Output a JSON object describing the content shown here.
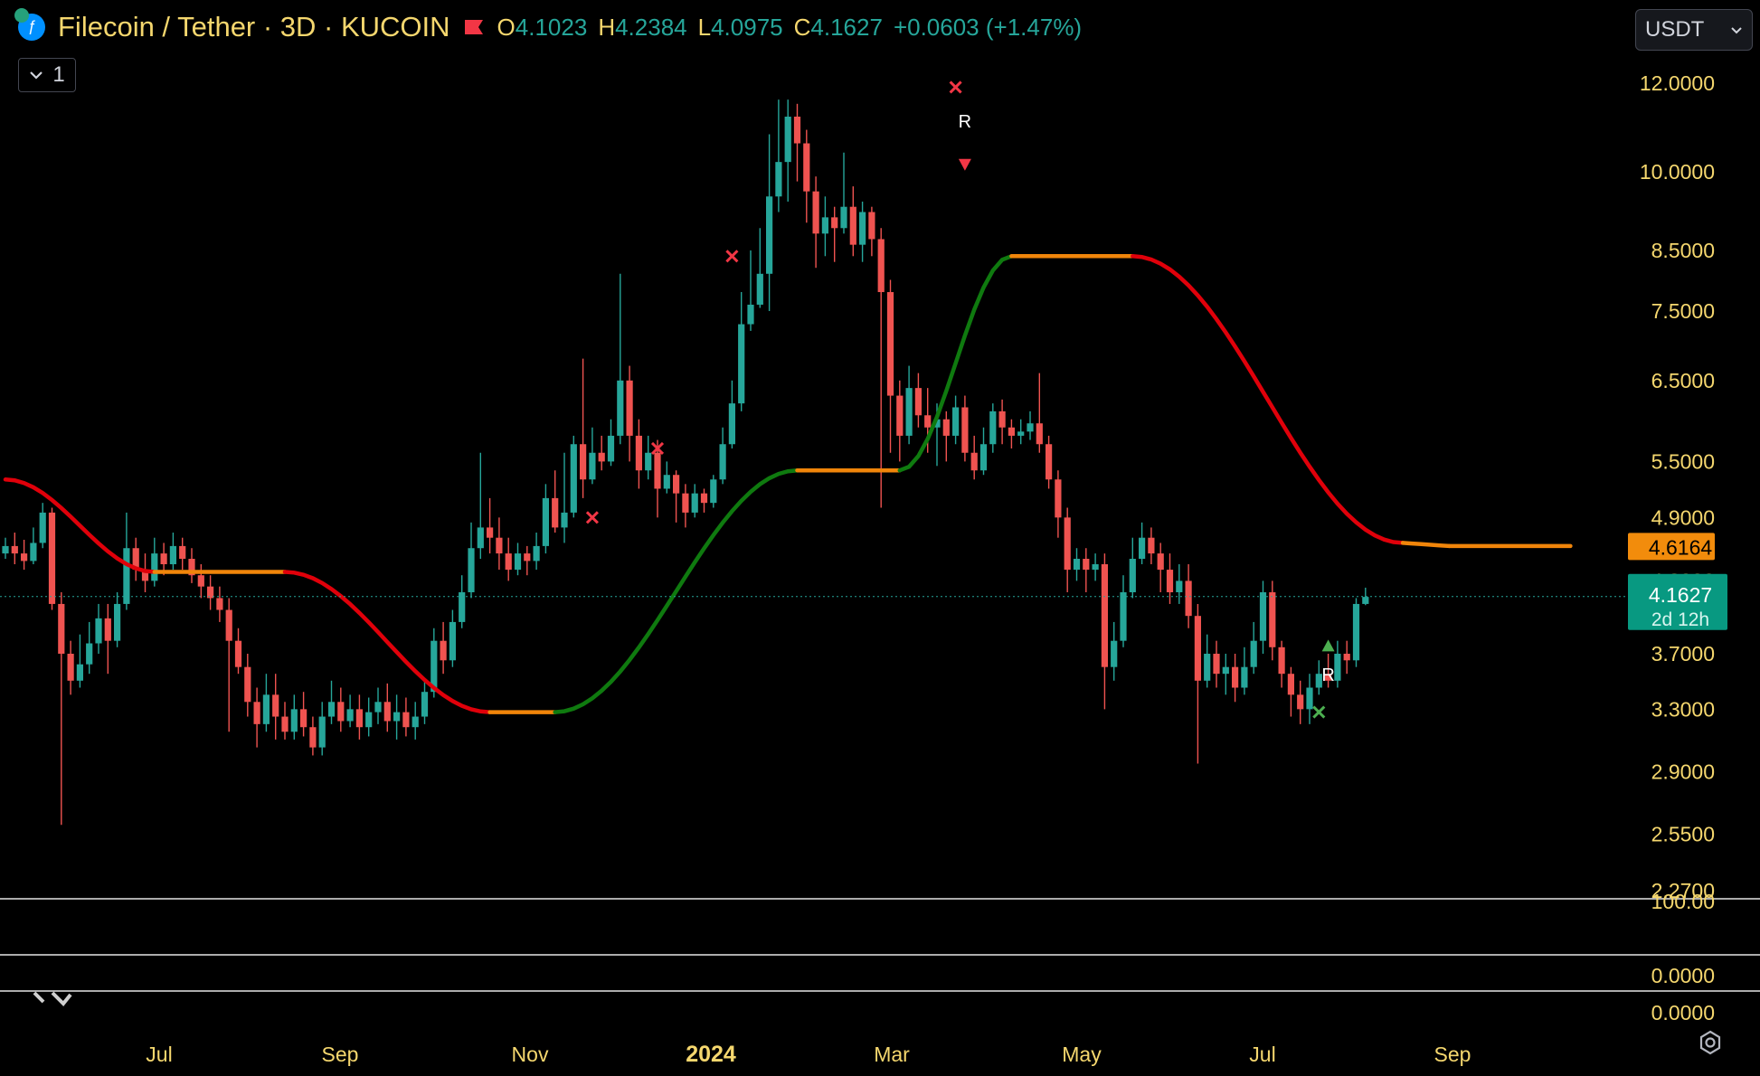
{
  "header": {
    "symbol": "Filecoin / Tether · 3D · KUCOIN",
    "o_label": "O",
    "o_value": "4.1023",
    "h_label": "H",
    "h_value": "4.2384",
    "l_label": "L",
    "l_value": "4.0975",
    "c_label": "C",
    "c_value": "4.1627",
    "change": "+0.0603 (+1.47%)",
    "collapse_count": "1",
    "currency": "USDT"
  },
  "colors": {
    "up": "#26a69a",
    "down": "#ef5350",
    "trend_down": "#e0000a",
    "trend_up": "#0f7a0f",
    "trend_neutral": "#f0850a",
    "axis_text": "#f5d76e",
    "last_price_bg": "#089981",
    "level_bg": "#f28c0c"
  },
  "chart_data": {
    "type": "candlestick",
    "title": "Filecoin / Tether · 3D · KUCOIN",
    "scale": "log",
    "ylim": [
      2.27,
      12.0
    ],
    "y_ticks": [
      "12.0000",
      "10.0000",
      "8.5000",
      "7.5000",
      "6.5000",
      "5.5000",
      "4.9000",
      "4.3000",
      "3.7000",
      "3.3000",
      "2.9000",
      "2.5500",
      "2.2700"
    ],
    "x_ticks": [
      "Jul",
      "Sep",
      "Nov",
      "2024",
      "Mar",
      "May",
      "Jul",
      "Sep"
    ],
    "last_price": {
      "value": "4.1627",
      "countdown": "2d 12h"
    },
    "level_label": "4.6164",
    "sub_panes": [
      {
        "ticks": [
          "100.00"
        ]
      },
      {
        "ticks": [
          "0.0000"
        ]
      },
      {
        "ticks": [
          "0.0000"
        ]
      }
    ],
    "candles": [
      [
        4.55,
        4.62,
        4.7,
        4.5
      ],
      [
        4.62,
        4.55,
        4.75,
        4.45
      ],
      [
        4.55,
        4.48,
        4.68,
        4.4
      ],
      [
        4.48,
        4.65,
        4.8,
        4.45
      ],
      [
        4.65,
        4.95,
        5.05,
        4.6
      ],
      [
        4.95,
        4.1,
        5.0,
        4.05
      ],
      [
        4.1,
        3.7,
        4.2,
        2.6
      ],
      [
        3.7,
        3.5,
        3.8,
        3.4
      ],
      [
        3.5,
        3.62,
        3.85,
        3.45
      ],
      [
        3.62,
        3.78,
        3.95,
        3.55
      ],
      [
        3.78,
        3.98,
        4.1,
        3.7
      ],
      [
        3.98,
        3.8,
        4.1,
        3.55
      ],
      [
        3.8,
        4.1,
        4.2,
        3.75
      ],
      [
        4.1,
        4.6,
        4.95,
        4.05
      ],
      [
        4.6,
        4.4,
        4.7,
        4.3
      ],
      [
        4.4,
        4.3,
        4.55,
        4.2
      ],
      [
        4.3,
        4.55,
        4.7,
        4.25
      ],
      [
        4.55,
        4.45,
        4.65,
        4.35
      ],
      [
        4.45,
        4.62,
        4.75,
        4.4
      ],
      [
        4.62,
        4.5,
        4.7,
        4.4
      ],
      [
        4.5,
        4.35,
        4.6,
        4.28
      ],
      [
        4.35,
        4.25,
        4.45,
        4.15
      ],
      [
        4.25,
        4.15,
        4.35,
        4.05
      ],
      [
        4.15,
        4.05,
        4.25,
        3.95
      ],
      [
        4.05,
        3.8,
        4.15,
        3.15
      ],
      [
        3.8,
        3.6,
        3.9,
        3.55
      ],
      [
        3.6,
        3.35,
        3.7,
        3.25
      ],
      [
        3.35,
        3.2,
        3.45,
        3.05
      ],
      [
        3.2,
        3.4,
        3.55,
        3.15
      ],
      [
        3.4,
        3.25,
        3.55,
        3.1
      ],
      [
        3.25,
        3.15,
        3.35,
        3.1
      ],
      [
        3.15,
        3.3,
        3.4,
        3.1
      ],
      [
        3.3,
        3.18,
        3.42,
        3.12
      ],
      [
        3.18,
        3.05,
        3.25,
        3.0
      ],
      [
        3.05,
        3.25,
        3.35,
        3.0
      ],
      [
        3.25,
        3.35,
        3.5,
        3.2
      ],
      [
        3.35,
        3.22,
        3.45,
        3.15
      ],
      [
        3.22,
        3.3,
        3.4,
        3.18
      ],
      [
        3.3,
        3.18,
        3.4,
        3.1
      ],
      [
        3.18,
        3.28,
        3.38,
        3.12
      ],
      [
        3.28,
        3.35,
        3.45,
        3.2
      ],
      [
        3.35,
        3.22,
        3.48,
        3.15
      ],
      [
        3.22,
        3.28,
        3.4,
        3.1
      ],
      [
        3.28,
        3.18,
        3.38,
        3.12
      ],
      [
        3.18,
        3.25,
        3.35,
        3.1
      ],
      [
        3.25,
        3.42,
        3.5,
        3.2
      ],
      [
        3.42,
        3.8,
        3.9,
        3.38
      ],
      [
        3.8,
        3.65,
        3.95,
        3.55
      ],
      [
        3.65,
        3.95,
        4.05,
        3.6
      ],
      [
        3.95,
        4.2,
        4.35,
        3.9
      ],
      [
        4.2,
        4.6,
        4.85,
        4.15
      ],
      [
        4.6,
        4.8,
        5.6,
        4.5
      ],
      [
        4.8,
        4.7,
        5.1,
        4.55
      ],
      [
        4.7,
        4.55,
        4.9,
        4.4
      ],
      [
        4.55,
        4.4,
        4.7,
        4.3
      ],
      [
        4.4,
        4.55,
        4.65,
        4.35
      ],
      [
        4.55,
        4.48,
        4.62,
        4.35
      ],
      [
        4.48,
        4.62,
        4.75,
        4.4
      ],
      [
        4.62,
        5.1,
        5.25,
        4.55
      ],
      [
        5.1,
        4.8,
        5.4,
        4.75
      ],
      [
        4.8,
        4.95,
        5.6,
        4.65
      ],
      [
        4.95,
        5.7,
        5.8,
        4.9
      ],
      [
        5.7,
        5.3,
        6.8,
        5.1
      ],
      [
        5.3,
        5.6,
        5.9,
        5.25
      ],
      [
        5.6,
        5.5,
        5.8,
        5.4
      ],
      [
        5.5,
        5.8,
        6.0,
        5.45
      ],
      [
        5.8,
        6.5,
        8.1,
        5.7
      ],
      [
        6.5,
        5.8,
        6.7,
        5.5
      ],
      [
        5.8,
        5.4,
        6.0,
        5.2
      ],
      [
        5.4,
        5.6,
        5.8,
        5.3
      ],
      [
        5.6,
        5.2,
        5.75,
        4.9
      ],
      [
        5.2,
        5.35,
        5.5,
        5.15
      ],
      [
        5.35,
        5.15,
        5.4,
        4.85
      ],
      [
        5.15,
        4.95,
        5.25,
        4.8
      ],
      [
        4.95,
        5.15,
        5.25,
        4.9
      ],
      [
        5.15,
        5.05,
        5.2,
        4.95
      ],
      [
        5.05,
        5.3,
        5.35,
        5.0
      ],
      [
        5.3,
        5.7,
        5.9,
        5.25
      ],
      [
        5.7,
        6.2,
        6.5,
        5.65
      ],
      [
        6.2,
        7.3,
        7.8,
        6.1
      ],
      [
        7.3,
        7.6,
        8.5,
        7.2
      ],
      [
        7.6,
        8.1,
        8.9,
        7.55
      ],
      [
        8.1,
        9.5,
        10.8,
        7.5
      ],
      [
        9.5,
        10.2,
        11.6,
        9.2
      ],
      [
        10.2,
        11.2,
        11.6,
        9.4
      ],
      [
        11.2,
        10.6,
        11.5,
        9.8
      ],
      [
        10.6,
        9.6,
        10.9,
        9.0
      ],
      [
        9.6,
        8.8,
        9.9,
        8.2
      ],
      [
        8.8,
        9.1,
        9.5,
        8.4
      ],
      [
        9.1,
        8.9,
        9.3,
        8.3
      ],
      [
        8.9,
        9.3,
        10.4,
        8.8
      ],
      [
        9.3,
        8.6,
        9.7,
        8.4
      ],
      [
        8.6,
        9.2,
        9.4,
        8.3
      ],
      [
        9.2,
        8.7,
        9.3,
        8.4
      ],
      [
        8.7,
        7.8,
        8.9,
        5.0
      ],
      [
        7.8,
        6.3,
        8.0,
        5.6
      ],
      [
        6.3,
        5.8,
        6.5,
        5.5
      ],
      [
        5.8,
        6.4,
        6.7,
        5.7
      ],
      [
        6.4,
        6.05,
        6.6,
        5.9
      ],
      [
        6.05,
        5.9,
        6.4,
        5.6
      ],
      [
        5.9,
        6.0,
        6.2,
        5.45
      ],
      [
        6.0,
        5.8,
        6.1,
        5.5
      ],
      [
        5.8,
        6.15,
        6.3,
        5.7
      ],
      [
        6.15,
        5.6,
        6.3,
        5.5
      ],
      [
        5.6,
        5.4,
        5.8,
        5.3
      ],
      [
        5.4,
        5.7,
        5.9,
        5.35
      ],
      [
        5.7,
        6.1,
        6.2,
        5.6
      ],
      [
        6.1,
        5.9,
        6.25,
        5.7
      ],
      [
        5.9,
        5.8,
        6.0,
        5.65
      ],
      [
        5.8,
        5.85,
        6.0,
        5.7
      ],
      [
        5.85,
        5.95,
        6.1,
        5.75
      ],
      [
        5.95,
        5.7,
        6.6,
        5.6
      ],
      [
        5.7,
        5.3,
        5.8,
        5.2
      ],
      [
        5.3,
        4.9,
        5.4,
        4.7
      ],
      [
        4.9,
        4.4,
        5.0,
        4.2
      ],
      [
        4.4,
        4.5,
        4.6,
        4.3
      ],
      [
        4.5,
        4.4,
        4.6,
        4.2
      ],
      [
        4.4,
        4.45,
        4.55,
        4.3
      ],
      [
        4.45,
        3.6,
        4.55,
        3.3
      ],
      [
        3.6,
        3.8,
        3.95,
        3.5
      ],
      [
        3.8,
        4.2,
        4.35,
        3.75
      ],
      [
        4.2,
        4.5,
        4.7,
        4.15
      ],
      [
        4.5,
        4.7,
        4.85,
        4.45
      ],
      [
        4.7,
        4.55,
        4.8,
        4.45
      ],
      [
        4.55,
        4.4,
        4.65,
        4.2
      ],
      [
        4.4,
        4.2,
        4.55,
        4.1
      ],
      [
        4.2,
        4.3,
        4.45,
        4.1
      ],
      [
        4.3,
        4.0,
        4.45,
        3.9
      ],
      [
        4.0,
        3.5,
        4.1,
        2.95
      ],
      [
        3.5,
        3.7,
        3.85,
        3.45
      ],
      [
        3.7,
        3.55,
        3.8,
        3.45
      ],
      [
        3.55,
        3.6,
        3.7,
        3.4
      ],
      [
        3.6,
        3.45,
        3.7,
        3.35
      ],
      [
        3.45,
        3.6,
        3.75,
        3.4
      ],
      [
        3.6,
        3.8,
        3.95,
        3.55
      ],
      [
        3.8,
        4.2,
        4.3,
        3.7
      ],
      [
        4.2,
        3.75,
        4.3,
        3.65
      ],
      [
        3.75,
        3.55,
        3.8,
        3.45
      ],
      [
        3.55,
        3.4,
        3.6,
        3.25
      ],
      [
        3.4,
        3.3,
        3.5,
        3.2
      ],
      [
        3.3,
        3.45,
        3.55,
        3.2
      ],
      [
        3.45,
        3.55,
        3.65,
        3.4
      ],
      [
        3.55,
        3.5,
        3.7,
        3.45
      ],
      [
        3.5,
        3.7,
        3.8,
        3.45
      ],
      [
        3.7,
        3.65,
        3.8,
        3.55
      ],
      [
        3.65,
        4.1,
        4.15,
        3.6
      ],
      [
        4.1,
        4.16,
        4.24,
        4.09
      ]
    ],
    "trend_line": [
      {
        "from": 0,
        "to": 16,
        "state": "down",
        "start": 5.3,
        "end": 4.38
      },
      {
        "from": 16,
        "to": 30,
        "state": "neutral",
        "start": 4.38,
        "end": 4.38
      },
      {
        "from": 30,
        "to": 52,
        "state": "down",
        "start": 4.38,
        "end": 3.28
      },
      {
        "from": 52,
        "to": 59,
        "state": "neutral",
        "start": 3.28,
        "end": 3.28
      },
      {
        "from": 59,
        "to": 85,
        "state": "up",
        "start": 3.28,
        "end": 5.4
      },
      {
        "from": 85,
        "to": 96,
        "state": "neutral",
        "start": 5.4,
        "end": 5.4
      },
      {
        "from": 96,
        "to": 108,
        "state": "up",
        "start": 5.4,
        "end": 8.4
      },
      {
        "from": 108,
        "to": 121,
        "state": "neutral",
        "start": 8.4,
        "end": 8.4
      },
      {
        "from": 121,
        "to": 150,
        "state": "down",
        "start": 8.4,
        "end": 4.65
      },
      {
        "from": 150,
        "to": 155,
        "state": "neutral",
        "start": 4.65,
        "end": 4.62
      },
      {
        "from": 155,
        "to": 168,
        "state": "neutral",
        "start": 4.62,
        "end": 4.62
      }
    ],
    "x_markers": [
      {
        "i": 63,
        "y": 4.9,
        "color": "red"
      },
      {
        "i": 70,
        "y": 5.65,
        "color": "red"
      },
      {
        "i": 78,
        "y": 8.4,
        "color": "red"
      },
      {
        "i": 102,
        "y": 11.9,
        "color": "red"
      },
      {
        "i": 141,
        "y": 3.28,
        "color": "green"
      }
    ],
    "r_labels": [
      {
        "i": 103,
        "y": 10.95,
        "text": "R"
      },
      {
        "i": 142,
        "y": 3.5,
        "text": "R"
      }
    ],
    "arrows": [
      {
        "i": 103,
        "y": 10.15,
        "dir": "down",
        "color": "red"
      },
      {
        "i": 142,
        "y": 3.76,
        "dir": "up",
        "color": "green"
      }
    ]
  }
}
